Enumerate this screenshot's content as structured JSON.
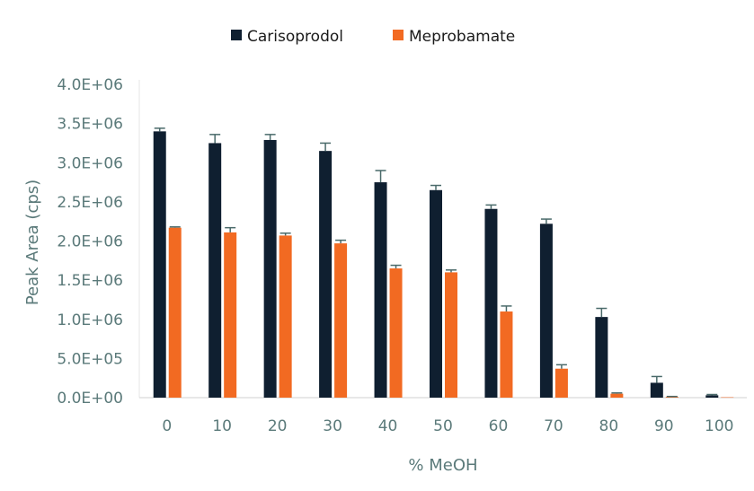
{
  "chart_data": {
    "type": "bar",
    "title": "",
    "xlabel": "% MeOH",
    "ylabel": "Peak Area (cps)",
    "categories": [
      "0",
      "10",
      "20",
      "30",
      "40",
      "50",
      "60",
      "70",
      "80",
      "90",
      "100"
    ],
    "ylim": [
      0,
      4000000
    ],
    "yticks": [
      "0.0E+00",
      "5.0E+05",
      "1.0E+06",
      "1.5E+06",
      "2.0E+06",
      "2.5E+06",
      "3.0E+06",
      "3.5E+06",
      "4.0E+06"
    ],
    "grid": false,
    "legend_placement": "top",
    "error_bars": true,
    "series": [
      {
        "name": "Carisoprodol",
        "color": "#0f1f30",
        "values": [
          3400000,
          3250000,
          3290000,
          3150000,
          2750000,
          2650000,
          2410000,
          2220000,
          1030000,
          190000,
          30000
        ],
        "errors": [
          40000,
          110000,
          70000,
          100000,
          150000,
          60000,
          50000,
          60000,
          110000,
          80000,
          10000
        ]
      },
      {
        "name": "Meprobamate",
        "color": "#f26a22",
        "values": [
          2170000,
          2110000,
          2070000,
          1970000,
          1650000,
          1600000,
          1100000,
          370000,
          50000,
          10000,
          5000
        ],
        "errors": [
          10000,
          60000,
          30000,
          40000,
          40000,
          30000,
          70000,
          50000,
          10000,
          5000,
          0
        ]
      }
    ]
  }
}
